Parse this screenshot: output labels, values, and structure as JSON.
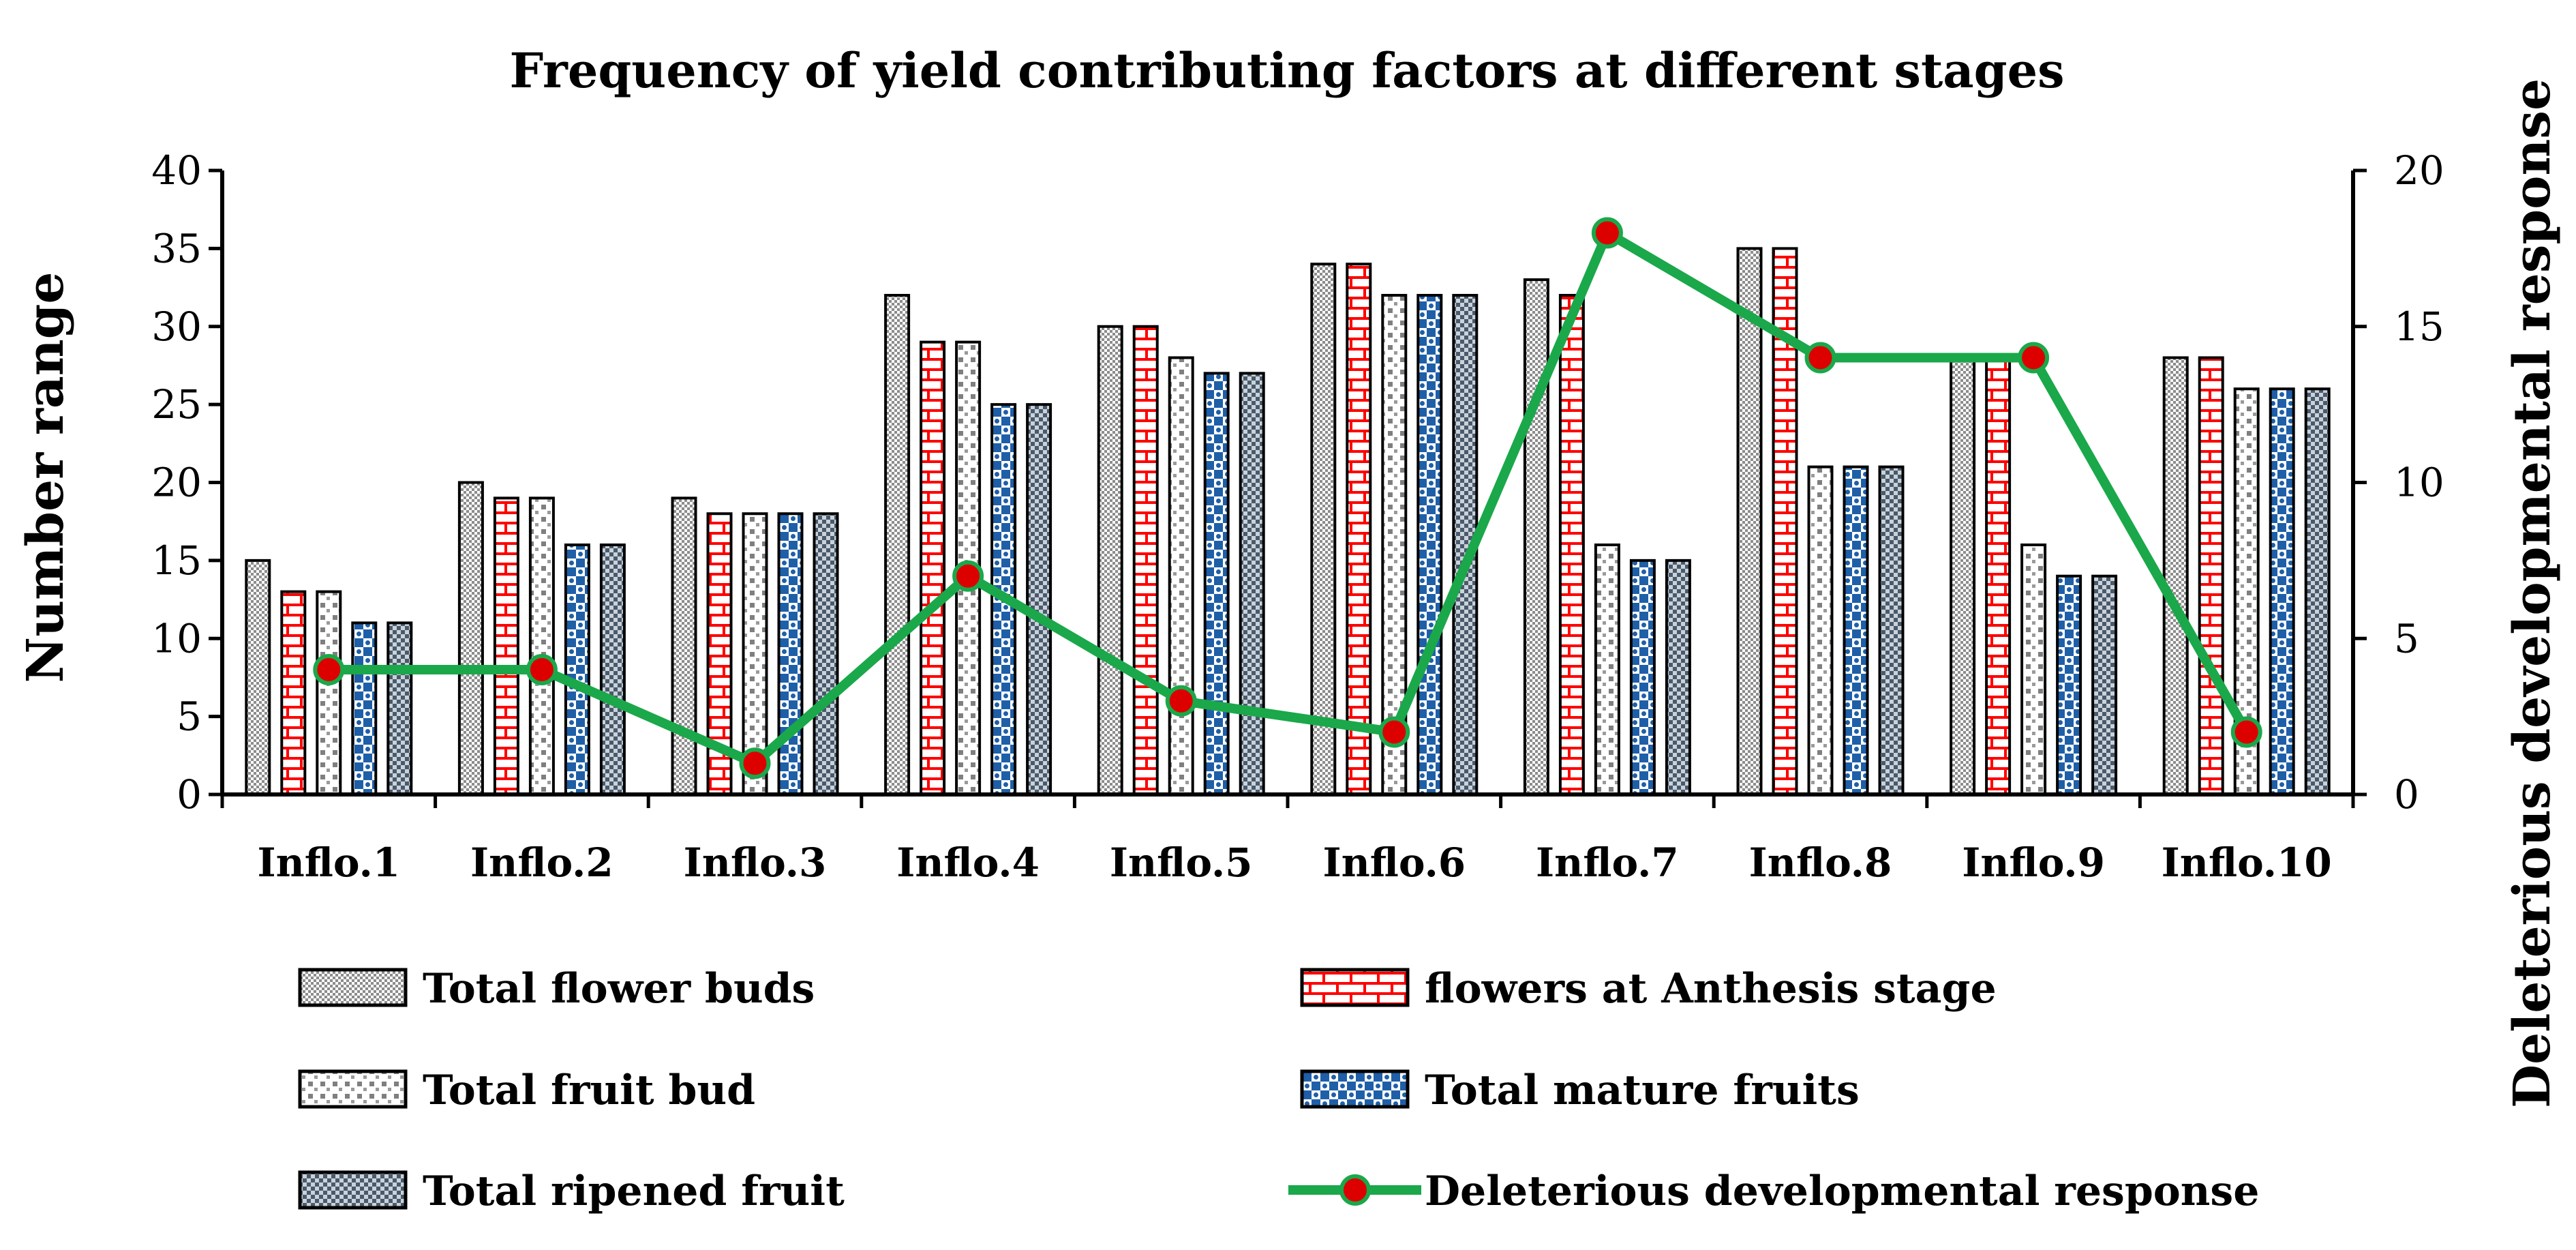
{
  "chart_data": {
    "type": "bar",
    "title": "Frequency of yield contributing factors at different stages",
    "xlabel": "",
    "ylabel": "Number range",
    "y2label": "Deleterious developmental response",
    "ylim": [
      0,
      40
    ],
    "y2lim": [
      0,
      20
    ],
    "yticks": [
      0,
      5,
      10,
      15,
      20,
      25,
      30,
      35,
      40
    ],
    "y2ticks": [
      0,
      5,
      10,
      15,
      20
    ],
    "grid": false,
    "legend_position": "bottom",
    "categories": [
      "Inflo.1",
      "Inflo.2",
      "Inflo.3",
      "Inflo.4",
      "Inflo.5",
      "Inflo.6",
      "Inflo.7",
      "Inflo.8",
      "Inflo.9",
      "Inflo.10"
    ],
    "series": [
      {
        "name": "Total flower buds",
        "type": "bar",
        "axis": "left",
        "pattern": "dense-dots",
        "color": "#8c8c8c",
        "values": [
          15,
          20,
          19,
          32,
          30,
          34,
          33,
          35,
          28,
          28
        ]
      },
      {
        "name": "flowers at Anthesis stage",
        "type": "bar",
        "axis": "left",
        "pattern": "brick",
        "color": "#ff0000",
        "values": [
          13,
          19,
          18,
          29,
          30,
          34,
          32,
          35,
          28,
          28
        ]
      },
      {
        "name": "Total fruit bud",
        "type": "bar",
        "axis": "left",
        "pattern": "sparse-squares",
        "color": "#7f7f7f",
        "values": [
          13,
          19,
          18,
          29,
          28,
          32,
          16,
          21,
          16,
          26
        ]
      },
      {
        "name": "Total mature fruits",
        "type": "bar",
        "axis": "left",
        "pattern": "large-confetti",
        "color": "#1f5fa8",
        "values": [
          11,
          16,
          18,
          25,
          27,
          32,
          15,
          21,
          14,
          26
        ]
      },
      {
        "name": "Total ripened fruit",
        "type": "bar",
        "axis": "left",
        "pattern": "checker",
        "color": "#4a5a6a",
        "values": [
          11,
          16,
          18,
          25,
          27,
          32,
          15,
          21,
          14,
          26
        ]
      },
      {
        "name": "Deleterious developmental response",
        "type": "line",
        "axis": "right",
        "color": "#1aa84a",
        "marker_color": "#dd0000",
        "values": [
          4,
          4,
          1,
          7,
          3,
          2,
          18,
          14,
          14,
          2
        ]
      }
    ]
  }
}
